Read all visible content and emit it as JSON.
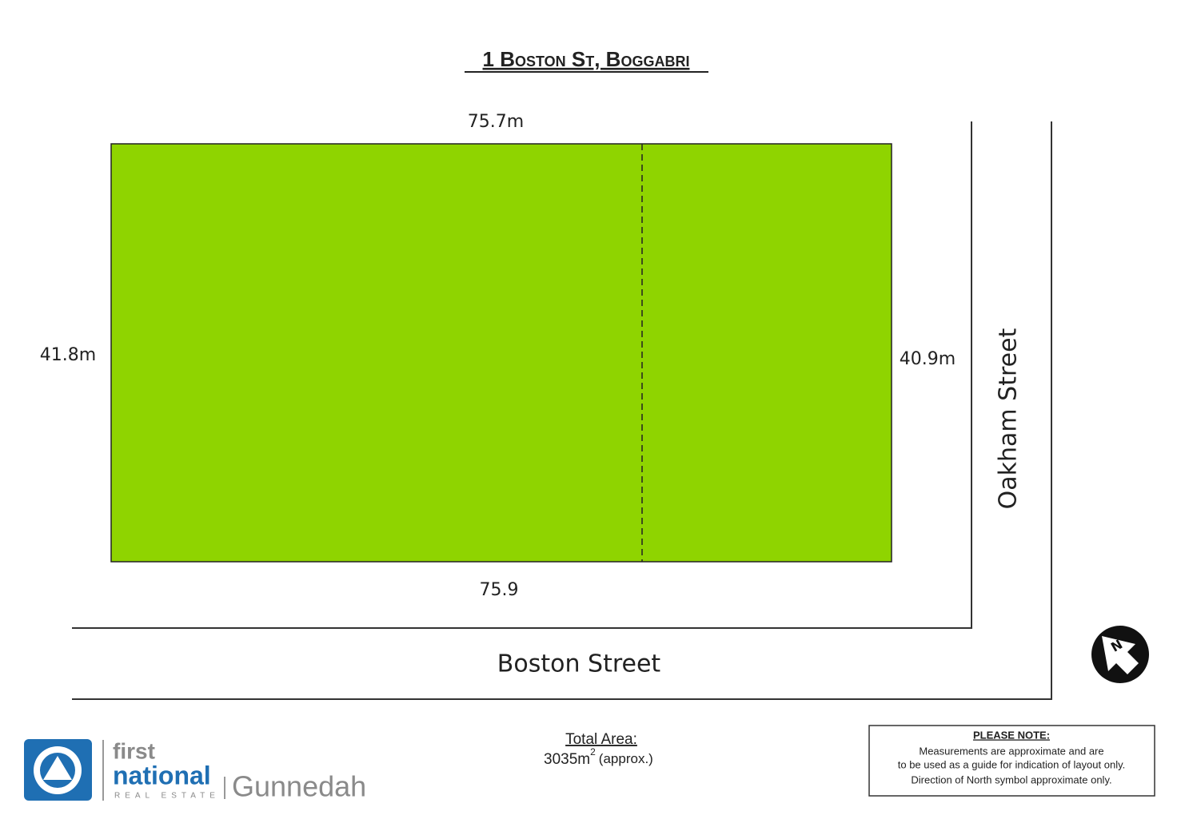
{
  "title": "1 Boston St, Boggabri",
  "lot": {
    "top_length": "75.7m",
    "bottom_length": "75.9",
    "left_length": "41.8m",
    "right_length": "40.9m"
  },
  "streets": {
    "side": "Oakham Street",
    "front": "Boston Street"
  },
  "compass": {
    "label": "N"
  },
  "total_area": {
    "heading": "Total Area:",
    "value": "3035m",
    "superscript": "2",
    "note": "(approx.)"
  },
  "logo": {
    "line1": "first",
    "line2": "national",
    "line3": "REAL ESTATE",
    "office": "Gunnedah"
  },
  "disclaimer": {
    "heading": "PLEASE NOTE:",
    "lines": [
      "Measurements are approximate and are",
      "to be used as a guide for indication of layout only.",
      "Direction of North symbol approximate only."
    ]
  }
}
